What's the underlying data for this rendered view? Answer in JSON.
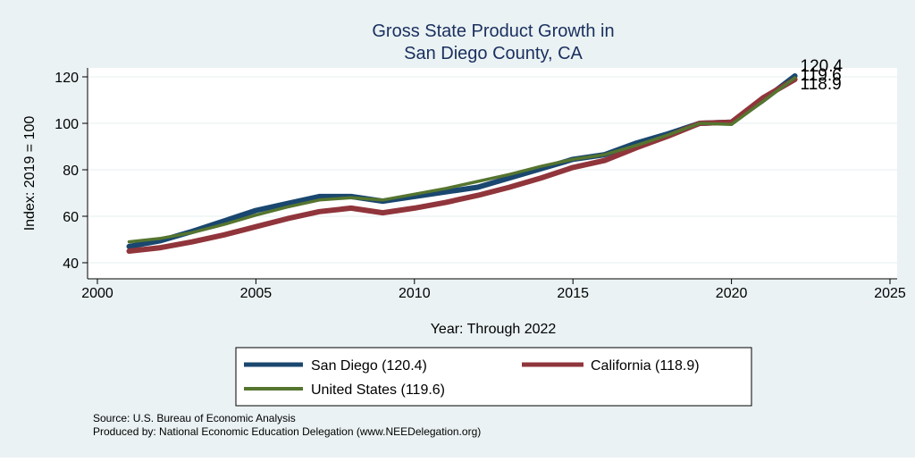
{
  "chart_data": {
    "type": "line",
    "title_line1": "Gross State Product Growth in",
    "title_line2": "San Diego County, CA",
    "xlabel": "Year: Through 2022",
    "ylabel": "Index: 2019 = 100",
    "xlim": [
      2000,
      2025
    ],
    "ylim": [
      40,
      120
    ],
    "x_ticks": [
      "2000",
      "2005",
      "2010",
      "2015",
      "2020",
      "2025"
    ],
    "y_ticks": [
      "40",
      "60",
      "80",
      "100",
      "120"
    ],
    "grid": true,
    "legend_position": "bottom",
    "x": [
      2001,
      2002,
      2003,
      2004,
      2005,
      2006,
      2007,
      2008,
      2009,
      2010,
      2011,
      2012,
      2013,
      2014,
      2015,
      2016,
      2017,
      2018,
      2019,
      2020,
      2021,
      2022
    ],
    "series": [
      {
        "name": "San Diego",
        "legend_label": "San Diego  (120.4)",
        "end_label": "120.4",
        "color": "#1a476f",
        "values": [
          47,
          49.5,
          53.5,
          58,
          62.5,
          65.5,
          68.5,
          68.5,
          66.5,
          68.5,
          70.5,
          72.5,
          76.5,
          80.5,
          84.5,
          86.5,
          91.5,
          95.5,
          100,
          100.5,
          110,
          120.4
        ]
      },
      {
        "name": "California",
        "legend_label": "California (118.9)",
        "end_label": "118.9",
        "color": "#90353b",
        "values": [
          45,
          46.5,
          49,
          52,
          55.5,
          59,
          62,
          63.5,
          61.5,
          63.5,
          66,
          69,
          72.5,
          76.5,
          81,
          84,
          89.5,
          94.5,
          100,
          100.5,
          111,
          118.9
        ]
      },
      {
        "name": "United States",
        "legend_label": "United States (119.6)",
        "end_label": "119.6",
        "color": "#55752f",
        "values": [
          49,
          50.5,
          53,
          56.5,
          60.5,
          64,
          67,
          68,
          67,
          69.5,
          72,
          75,
          78,
          81.5,
          84.5,
          86.5,
          90.5,
          95,
          100,
          99.5,
          109.5,
          119.6
        ]
      }
    ],
    "notes": [
      "Source: U.S. Bureau of Economic Analysis",
      "Produced by: National Economic Education Delegation (www.NEEDelegation.org)"
    ]
  }
}
